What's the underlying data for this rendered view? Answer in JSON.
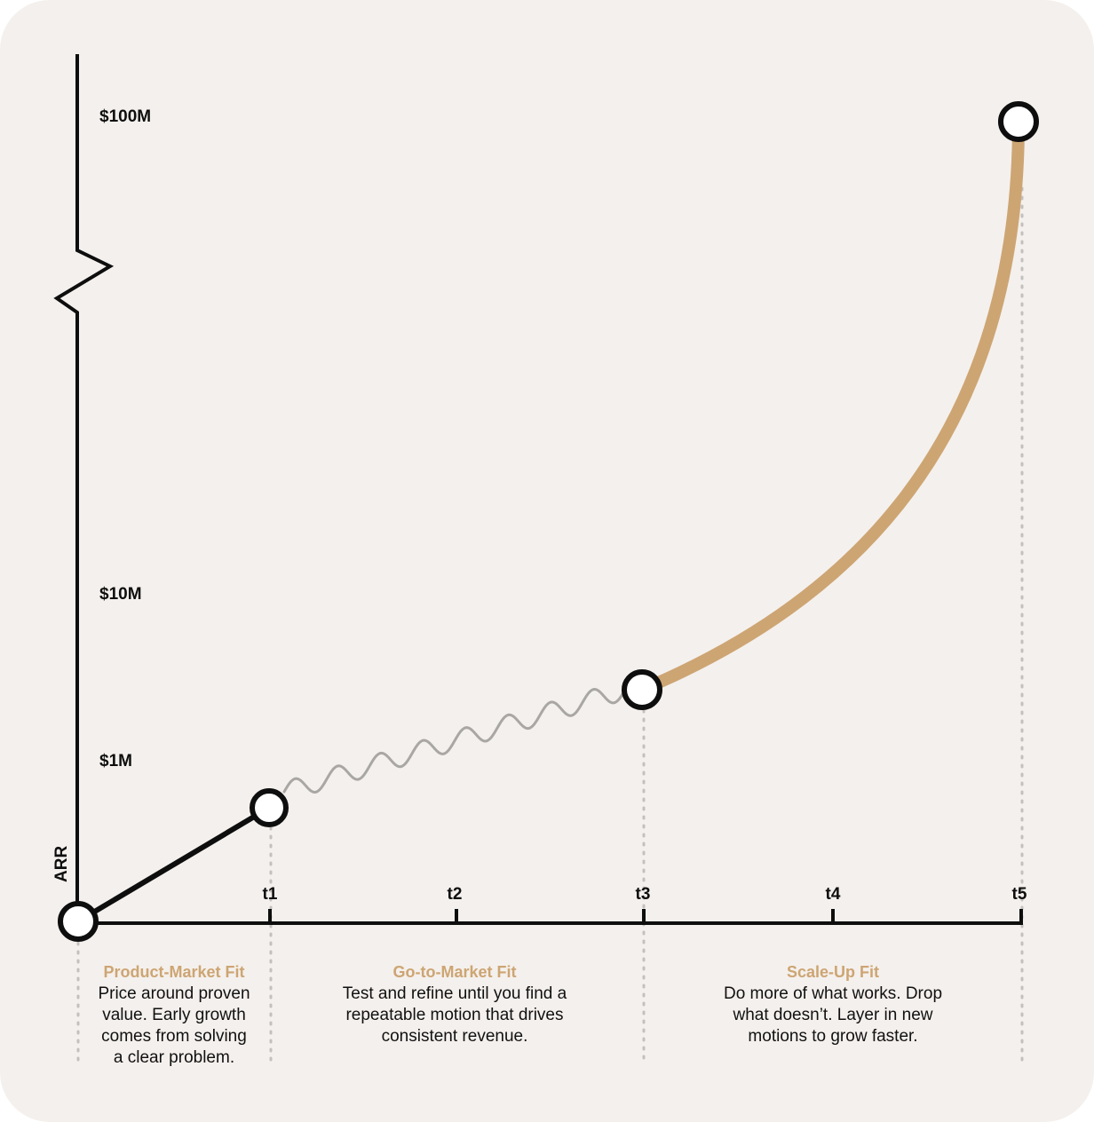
{
  "axis": {
    "y_title": "ARR",
    "y_ticks": [
      "$100M",
      "$10M",
      "$1M"
    ],
    "x_ticks": [
      "t1",
      "t2",
      "t3",
      "t4",
      "t5"
    ]
  },
  "phases": [
    {
      "title": "Product-Market Fit",
      "desc_lines": [
        "Price around proven",
        "value. Early growth",
        "comes from solving",
        "a clear problem."
      ]
    },
    {
      "title": "Go-to-Market Fit",
      "desc_lines": [
        "Test and refine until you find a",
        "repeatable motion that drives",
        "consistent revenue."
      ]
    },
    {
      "title": "Scale-Up Fit",
      "desc_lines": [
        "Do more of what works. Drop",
        "what doesn’t. Layer in new",
        "motions to grow faster."
      ]
    }
  ],
  "colors": {
    "background": "#f4f0ed",
    "axis": "#0e0e0e",
    "accent": "#cda573",
    "wavy": "#a9a7a4",
    "guide": "#c3c0bd"
  }
}
